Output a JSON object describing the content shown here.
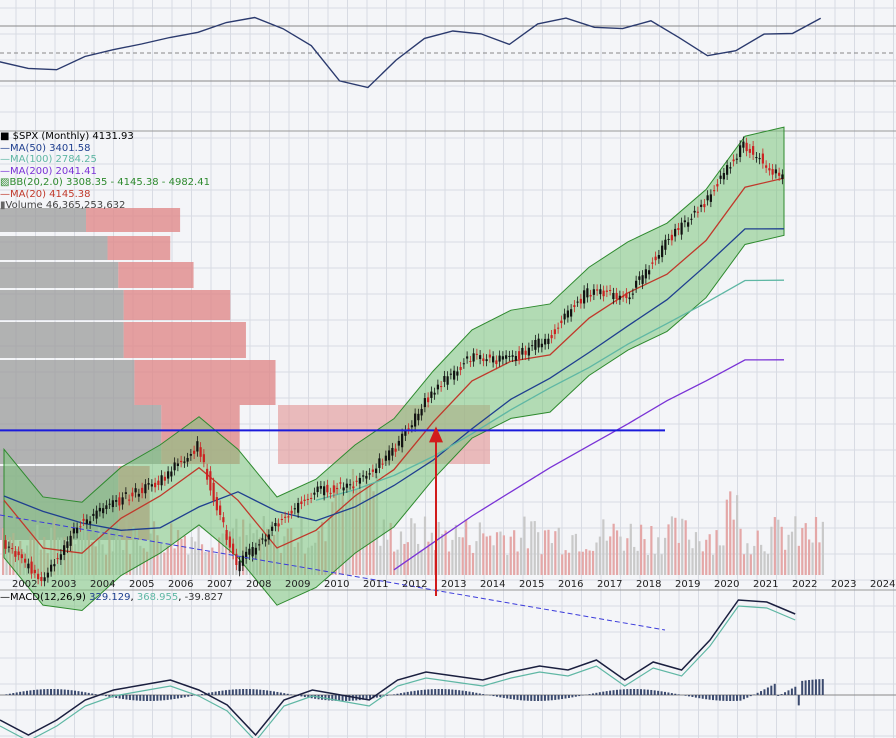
{
  "legend": {
    "title": "$SPX (Monthly) 4131.93",
    "ma50": "MA(50) 3401.58",
    "ma100": "MA(100) 2784.25",
    "ma200": "MA(200) 2041.41",
    "bb": "BB(20,2.0) 3308.35 - 4145.38 - 4982.41",
    "ma20": "MA(20) 4145.38",
    "volume": "Volume 46,365,253,632"
  },
  "macd_legend": {
    "label": "MACD(12,26,9)",
    "macd": "329.129",
    "signal": "368.955",
    "hist": "-39.827"
  },
  "colors": {
    "ma50": "#1f3f8f",
    "ma100": "#5fb7a4",
    "ma200": "#7a33d6",
    "bb": "#2e8a2e",
    "ma20": "#c0392b",
    "hline": "#1a1adb",
    "arrow": "#d11b1b",
    "trend": "#3b3bdb"
  },
  "chart_data": {
    "type": "line",
    "x": [
      "2002",
      "2003",
      "2004",
      "2005",
      "2006",
      "2007",
      "2008",
      "2009",
      "2010",
      "2011",
      "2012",
      "2013",
      "2014",
      "2015",
      "2016",
      "2017",
      "2018",
      "2019",
      "2020",
      "2021",
      "2022",
      "2023",
      "2024"
    ],
    "series": [
      {
        "name": "$SPX (Monthly)",
        "values": [
          1000,
          870,
          1080,
          1180,
          1270,
          1460,
          910,
          1070,
          1220,
          1260,
          1420,
          1800,
          2060,
          2040,
          2230,
          2670,
          2600,
          3220,
          3760,
          4740,
          4132,
          null,
          null
        ]
      },
      {
        "name": "MA(20)",
        "values": [
          1180,
          980,
          960,
          1100,
          1200,
          1340,
          1180,
          980,
          1050,
          1200,
          1330,
          1600,
          1880,
          2030,
          2080,
          2400,
          2650,
          2850,
          3250,
          4000,
          4145,
          null,
          null
        ]
      },
      {
        "name": "MA(50)",
        "values": [
          1200,
          1130,
          1080,
          1050,
          1060,
          1150,
          1220,
          1130,
          1090,
          1150,
          1250,
          1380,
          1560,
          1750,
          1900,
          2100,
          2330,
          2580,
          2950,
          3400,
          3402,
          null,
          null
        ]
      },
      {
        "name": "MA(100)",
        "values": [
          null,
          null,
          null,
          null,
          null,
          null,
          null,
          null,
          1180,
          1230,
          1300,
          1400,
          1530,
          1680,
          1830,
          1980,
          2170,
          2350,
          2550,
          2780,
          2784,
          null,
          null
        ]
      },
      {
        "name": "MA(200)",
        "values": [
          null,
          null,
          null,
          null,
          null,
          null,
          null,
          null,
          null,
          null,
          900,
          1000,
          1110,
          1220,
          1340,
          1460,
          1590,
          1740,
          1880,
          2040,
          2041,
          null,
          null
        ]
      }
    ],
    "horizontal_line": 1550,
    "annotation": "2013",
    "macd": {
      "name": "MACD(12,26,9)",
      "macd": 329.129,
      "signal": 368.955,
      "histogram": -39.827
    },
    "log_scale": true,
    "grid": true
  }
}
